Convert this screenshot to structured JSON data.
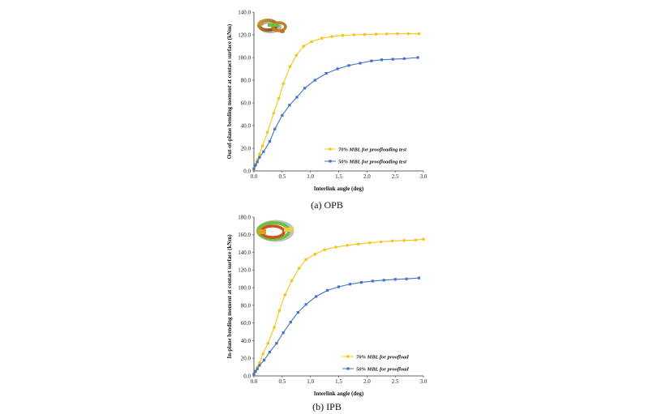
{
  "chart_data": [
    {
      "type": "line",
      "caption": "(a)  OPB",
      "xlabel": "Interlink angle (deg)",
      "ylabel": "Out-of-plane bending moment at contact surface (kNm)",
      "xlim": [
        0,
        3.0
      ],
      "ylim": [
        0,
        140
      ],
      "xticks": [
        "0.0",
        "0.5",
        "1.0",
        "1.5",
        "2.0",
        "2.5",
        "3.0"
      ],
      "yticks": [
        "0.0",
        "20.0",
        "40.0",
        "60.0",
        "80.0",
        "100.0",
        "120.0",
        "140.0"
      ],
      "legend_position": "bottom-right",
      "grid": false,
      "series": [
        {
          "name": "70% MBL for proofloading test",
          "color": "#F5C518",
          "marker": "circle",
          "x": [
            0,
            0.03,
            0.06,
            0.1,
            0.15,
            0.24,
            0.35,
            0.44,
            0.52,
            0.64,
            0.75,
            0.88,
            1.02,
            1.2,
            1.38,
            1.57,
            1.77,
            1.96,
            2.16,
            2.35,
            2.54,
            2.73,
            2.92
          ],
          "y": [
            2,
            6,
            10,
            15,
            22,
            34,
            51,
            64,
            77,
            92,
            102,
            110,
            114,
            117,
            118.5,
            119.5,
            120,
            120.3,
            120.6,
            120.8,
            121,
            121,
            121
          ]
        },
        {
          "name": "50% MBL for proofloading test",
          "color": "#4472C4",
          "marker": "square",
          "x": [
            0,
            0.03,
            0.06,
            0.1,
            0.17,
            0.28,
            0.37,
            0.5,
            0.63,
            0.76,
            0.9,
            1.08,
            1.28,
            1.48,
            1.68,
            1.88,
            2.08,
            2.26,
            2.46,
            2.66,
            2.9
          ],
          "y": [
            2,
            5,
            8,
            12,
            17,
            26,
            37,
            49,
            58,
            65,
            73,
            80,
            86,
            90,
            93,
            95,
            97,
            98,
            98.5,
            99,
            100
          ]
        }
      ]
    },
    {
      "type": "line",
      "caption": "(b)  IPB",
      "xlabel": "Interlink angle (deg)",
      "ylabel": "In-plane bending moment at contact surface (kNm)",
      "xlim": [
        0,
        3.0
      ],
      "ylim": [
        0,
        180
      ],
      "xticks": [
        "0.0",
        "0.5",
        "1.0",
        "1.5",
        "2.0",
        "2.5",
        "3.0"
      ],
      "yticks": [
        "0.0",
        "20.0",
        "40.0",
        "60.0",
        "80.0",
        "100.0",
        "120.0",
        "140.0",
        "160.0",
        "180.0"
      ],
      "legend_position": "bottom-right",
      "grid": false,
      "series": [
        {
          "name": "70% MBL for proofload",
          "color": "#F5C518",
          "marker": "circle",
          "x": [
            0,
            0.03,
            0.06,
            0.1,
            0.16,
            0.25,
            0.36,
            0.45,
            0.55,
            0.67,
            0.8,
            0.92,
            1.08,
            1.25,
            1.45,
            1.65,
            1.85,
            2.05,
            2.25,
            2.45,
            2.66,
            2.86,
            3.0
          ],
          "y": [
            2,
            6,
            10,
            15,
            25,
            37,
            55,
            74,
            92,
            108,
            122,
            132,
            138,
            143,
            146,
            148,
            149.5,
            151,
            152,
            153,
            153.5,
            154,
            155
          ]
        },
        {
          "name": "50% MBL for proofload",
          "color": "#4472C4",
          "marker": "square",
          "x": [
            0,
            0.03,
            0.06,
            0.1,
            0.18,
            0.28,
            0.4,
            0.52,
            0.65,
            0.78,
            0.92,
            1.1,
            1.3,
            1.5,
            1.7,
            1.9,
            2.1,
            2.3,
            2.5,
            2.7,
            2.92
          ],
          "y": [
            2,
            5,
            8,
            12,
            18,
            27,
            37,
            49,
            61,
            72,
            81,
            90,
            97,
            101,
            104,
            106,
            107.5,
            108.5,
            109.5,
            110,
            111
          ]
        }
      ]
    }
  ]
}
